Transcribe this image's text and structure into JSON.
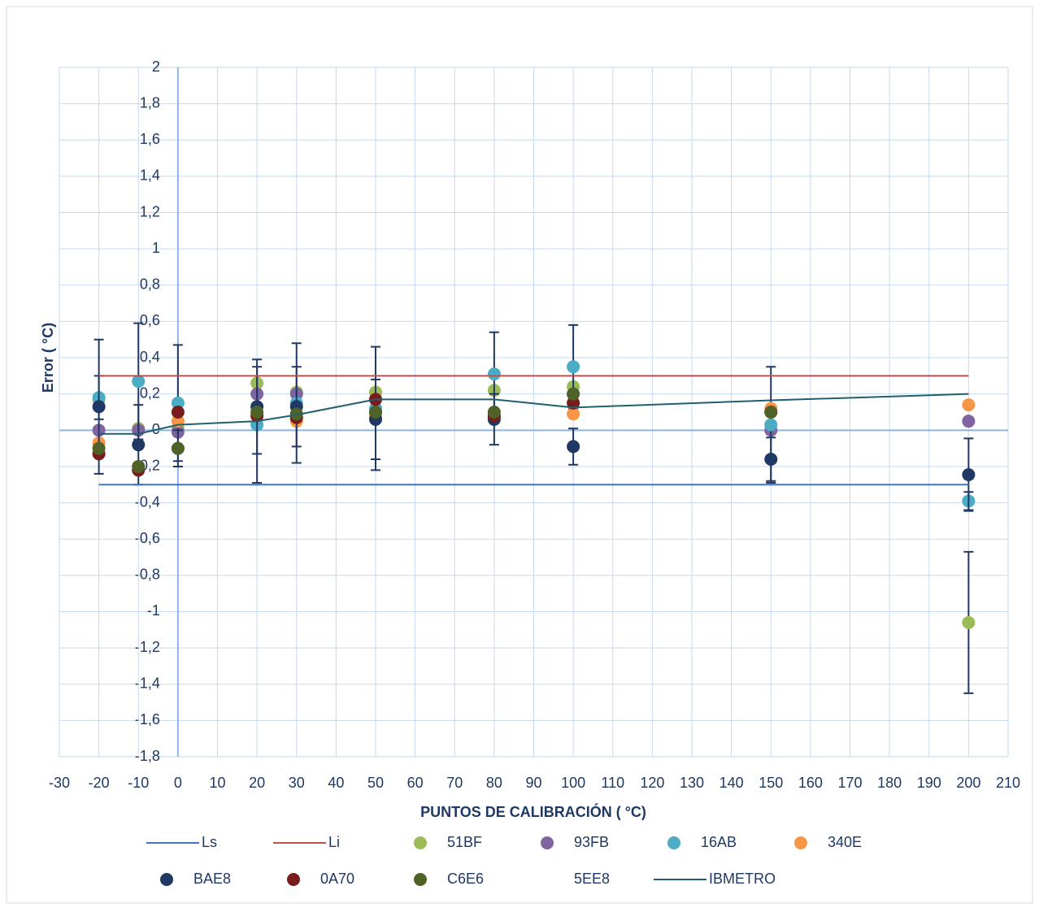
{
  "chart_data": {
    "type": "scatter",
    "x_label": "PUNTOS DE CALIBRACIÓN ( °C)",
    "y_label": "Error  ( °C)",
    "xlim": [
      -30,
      210
    ],
    "ylim": [
      -1.8,
      2
    ],
    "xticks": [
      -30,
      -20,
      -10,
      0,
      10,
      20,
      30,
      40,
      50,
      60,
      70,
      80,
      90,
      100,
      110,
      120,
      130,
      140,
      150,
      160,
      170,
      180,
      190,
      200,
      210
    ],
    "yticks": [
      {
        "value": -1.8,
        "label": "-1,8"
      },
      {
        "value": -1.6,
        "label": "-1,6"
      },
      {
        "value": -1.4,
        "label": "-1,4"
      },
      {
        "value": -1.2,
        "label": "-1,2"
      },
      -1,
      {
        "value": -0.8,
        "label": "-0,8"
      },
      {
        "value": -0.6,
        "label": "-0,6"
      },
      {
        "value": -0.4,
        "label": "-0,4"
      },
      {
        "value": -0.2,
        "label": "-0,2"
      },
      0,
      {
        "value": 0.2,
        "label": "0,2"
      },
      {
        "value": 0.4,
        "label": "0,4"
      },
      {
        "value": 0.6,
        "label": "0,6"
      },
      {
        "value": 0.8,
        "label": "0,8"
      },
      1,
      {
        "value": 1.2,
        "label": "1,2"
      },
      {
        "value": 1.4,
        "label": "1,4"
      },
      {
        "value": 1.6,
        "label": "1,6"
      },
      {
        "value": 1.8,
        "label": "1,8"
      },
      2
    ],
    "grid": true,
    "x": [
      -20,
      -10,
      0,
      20,
      30,
      50,
      80,
      100,
      150,
      200
    ],
    "series": [
      {
        "name": "Ls",
        "mode": "line",
        "color": "#4472c4",
        "x": [
          -20,
          200
        ],
        "values": [
          -0.3,
          -0.3
        ]
      },
      {
        "name": "Li",
        "mode": "line",
        "color": "#c0504d",
        "x": [
          -20,
          200
        ],
        "values": [
          0.3,
          0.3
        ]
      },
      {
        "name": "51BF",
        "mode": "marker",
        "color": "#9bbb59",
        "values": [
          0.17,
          0.01,
          0.01,
          0.26,
          0.21,
          0.21,
          0.22,
          0.24,
          0.1,
          -1.06
        ],
        "errors": [
          null,
          null,
          null,
          null,
          null,
          null,
          null,
          null,
          null,
          0.39
        ]
      },
      {
        "name": "93FB",
        "mode": "marker",
        "color": "#8064a2",
        "values": [
          0.0,
          0.0,
          -0.01,
          0.2,
          0.2,
          0.1,
          0.07,
          0.2,
          0.0,
          0.05
        ]
      },
      {
        "name": "16AB",
        "mode": "marker",
        "color": "#4bacc6",
        "values": [
          0.18,
          0.27,
          0.15,
          0.03,
          0.15,
          0.12,
          0.31,
          0.35,
          0.03,
          -0.39
        ],
        "errors": [
          0.12,
          0.32,
          0.32,
          0.32,
          0.33,
          0.34,
          0.23,
          0.23,
          0.32,
          0.05
        ]
      },
      {
        "name": "340E",
        "mode": "marker",
        "color": "#f79646",
        "values": [
          -0.07,
          -0.2,
          0.05,
          0.08,
          0.05,
          0.08,
          0.08,
          0.09,
          0.12,
          0.14
        ]
      },
      {
        "name": "BAE8",
        "mode": "marker",
        "color": "#1f3864",
        "values": [
          0.13,
          -0.08,
          -0.1,
          0.13,
          0.13,
          0.06,
          0.06,
          -0.09,
          -0.16,
          -0.245
        ],
        "errors": [
          0.37,
          0.22,
          0.1,
          0.26,
          0.22,
          0.22,
          0.14,
          0.1,
          0.12,
          0.2
        ]
      },
      {
        "name": "0A70",
        "mode": "marker",
        "color": "#7b1c1c",
        "values": [
          -0.13,
          -0.22,
          0.1,
          0.08,
          0.07,
          0.17,
          0.08,
          0.15,
          0.1,
          null
        ]
      },
      {
        "name": "C6E6",
        "mode": "marker",
        "color": "#4f6228",
        "values": [
          -0.1,
          -0.2,
          -0.1,
          0.1,
          0.09,
          0.1,
          0.1,
          0.2,
          0.1,
          null
        ]
      },
      {
        "name": "5EE8",
        "mode": "marker",
        "color": "none"
      },
      {
        "name": "IBMETRO",
        "mode": "line",
        "color": "#215e6e",
        "values": [
          -0.02,
          -0.02,
          0.03,
          0.05,
          0.085,
          0.17,
          0.17,
          0.125,
          0.165,
          0.2
        ]
      }
    ]
  }
}
